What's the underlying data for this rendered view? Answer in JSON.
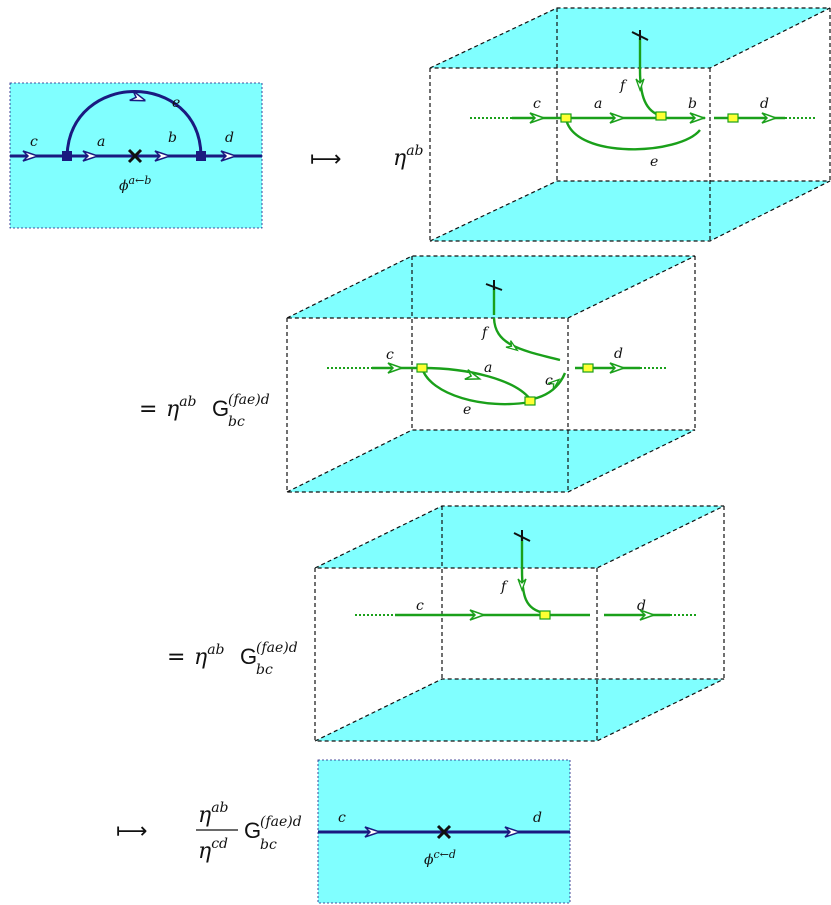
{
  "diagram1": {
    "labels": {
      "c": "c",
      "a": "a",
      "b": "b",
      "d": "d",
      "e": "e",
      "phi": "ϕ",
      "phi_sup": "a←b"
    }
  },
  "step1": {
    "arrow": "⟼",
    "eta": "η",
    "eta_sup": "ab",
    "labels": {
      "c": "c",
      "a": "a",
      "b": "b",
      "d": "d",
      "e": "e",
      "f": "f"
    }
  },
  "step2": {
    "equals": "=",
    "eta": "η",
    "eta_sup": "ab",
    "G": "G",
    "G_sup": "(fae)d",
    "G_sub": "bc",
    "labels": {
      "c": "c",
      "a": "a",
      "c2": "c",
      "d": "d",
      "e": "e",
      "f": "f"
    }
  },
  "step3": {
    "equals": "=",
    "eta": "η",
    "eta_sup": "ab",
    "G": "G",
    "G_sup": "(fae)d",
    "G_sub": "bc",
    "labels": {
      "c": "c",
      "d": "d",
      "f": "f"
    }
  },
  "step4": {
    "arrow": "⟼",
    "num_eta": "η",
    "num_sup": "ab",
    "den_eta": "η",
    "den_sup": "cd",
    "G": "G",
    "G_sup": "(fae)d",
    "G_sub": "bc",
    "labels": {
      "c": "c",
      "d": "d",
      "phi": "ϕ",
      "phi_sup": "c←d"
    }
  },
  "colors": {
    "plane": "#80ffff",
    "strand": "#1a1a80",
    "green": "#1aa01a",
    "yellow": "#ffff33"
  }
}
